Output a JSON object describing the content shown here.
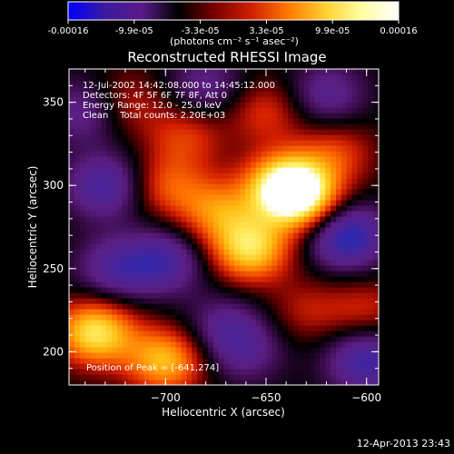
{
  "colorbar": {
    "tick_labels": [
      "-0.00016",
      "-9.9e-05",
      "-3.3e-05",
      "3.3e-05",
      "9.9e-05",
      "0.00016"
    ],
    "unit_label": "(photons cm⁻² s⁻¹ asec⁻²)",
    "stops": [
      "#0000ff",
      "#3a1aa0",
      "#5a1a8a",
      "#000000",
      "#7a0000",
      "#d02000",
      "#ff7a00",
      "#ffd030",
      "#ffffa0",
      "#ffffff"
    ]
  },
  "chart_data": {
    "type": "heatmap",
    "title": "Reconstructed RHESSI Image",
    "xlabel": "Heliocentric X (arcsec)",
    "ylabel": "Heliocentric Y (arcsec)",
    "xlim": [
      -748,
      -594
    ],
    "ylim": [
      180,
      370
    ],
    "x_ticks": [
      -700,
      -650,
      -600
    ],
    "y_ticks": [
      200,
      250,
      300,
      350
    ],
    "x_tick_labels": [
      "−700",
      "−650",
      "−600"
    ],
    "y_tick_labels": [
      "200",
      "250",
      "300",
      "350"
    ],
    "annotations": [
      "12-Jul-2002 14:42:08.000 to 14:45:12.000",
      "Detectors: 4F 5F 6F 7F 8F, Att 0",
      "Energy Range: 12.0 - 25.0 keV",
      "Clean    Total counts: 2.20E+03"
    ],
    "peak_label": "Position of Peak = [-641,274]",
    "peak": [
      -641,
      274
    ],
    "blobs": [
      {
        "x": -640,
        "y": 300,
        "v": 1.0
      },
      {
        "x": -658,
        "y": 262,
        "v": 0.8
      },
      {
        "x": -630,
        "y": 290,
        "v": 0.6
      },
      {
        "x": -675,
        "y": 285,
        "v": 0.5
      },
      {
        "x": -700,
        "y": 300,
        "v": 0.4
      },
      {
        "x": -690,
        "y": 330,
        "v": 0.35
      },
      {
        "x": -735,
        "y": 212,
        "v": 0.85
      },
      {
        "x": -700,
        "y": 195,
        "v": 0.7
      },
      {
        "x": -720,
        "y": 350,
        "v": 0.3
      },
      {
        "x": -650,
        "y": 345,
        "v": 0.35
      },
      {
        "x": -615,
        "y": 320,
        "v": 0.35
      },
      {
        "x": -600,
        "y": 225,
        "v": 0.3
      },
      {
        "x": -630,
        "y": 225,
        "v": 0.25
      },
      {
        "x": -730,
        "y": 300,
        "v": -0.55
      },
      {
        "x": -700,
        "y": 255,
        "v": -0.5
      },
      {
        "x": -725,
        "y": 250,
        "v": -0.45
      },
      {
        "x": -610,
        "y": 270,
        "v": -0.75
      },
      {
        "x": -600,
        "y": 195,
        "v": -0.6
      },
      {
        "x": -740,
        "y": 345,
        "v": -0.4
      },
      {
        "x": -670,
        "y": 215,
        "v": -0.35
      },
      {
        "x": -620,
        "y": 355,
        "v": -0.4
      },
      {
        "x": -680,
        "y": 360,
        "v": -0.35
      },
      {
        "x": -660,
        "y": 200,
        "v": -0.3
      }
    ]
  },
  "timestamp": "12-Apr-2013 23:43"
}
